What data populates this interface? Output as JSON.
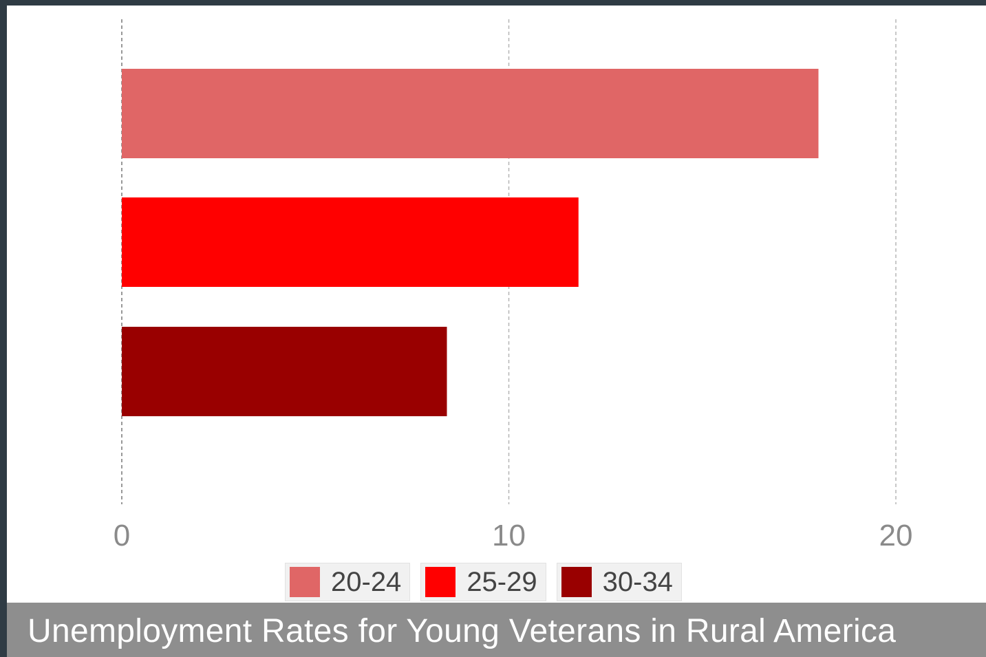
{
  "chart_data": {
    "type": "bar",
    "orientation": "horizontal",
    "title": "Unemployment Rates for Young Veterans in Rural America",
    "xlabel": "",
    "ylabel": "",
    "xlim": [
      0,
      20
    ],
    "ticks": [
      "0",
      "10",
      "20"
    ],
    "tick_values": [
      0,
      10,
      20
    ],
    "grid": "vertical dashed",
    "legend_position": "bottom",
    "series": [
      {
        "name": "20-24",
        "value": 18.0,
        "color": "#e06666"
      },
      {
        "name": "25-29",
        "value": 11.8,
        "color": "#ff0000"
      },
      {
        "name": "30-34",
        "value": 8.4,
        "color": "#990000"
      }
    ]
  }
}
